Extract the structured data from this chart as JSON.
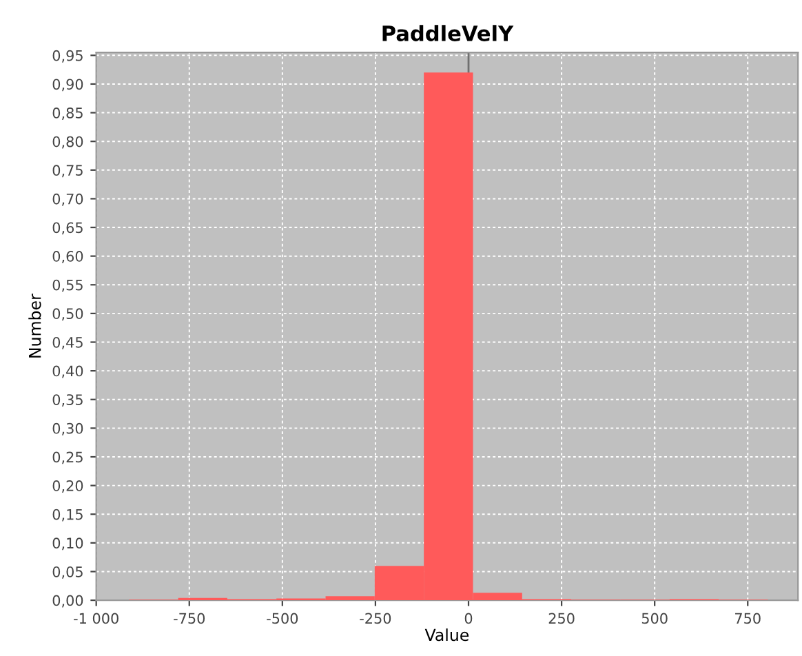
{
  "chart_data": {
    "type": "histogram",
    "title": "PaddleVelY",
    "xlabel": "Value",
    "ylabel": "Number",
    "bins": [
      -912,
      -780,
      -648,
      -516,
      -384,
      -252,
      -120,
      12,
      144,
      276,
      408,
      540,
      672,
      804
    ],
    "values": [
      0.001,
      0.004,
      0.002,
      0.003,
      0.007,
      0.06,
      0.92,
      0.013,
      0.002,
      0.001,
      0.001,
      0.002,
      0.001
    ],
    "color": "#ff5a5a",
    "xlim": [
      -1000,
      885
    ],
    "ylim": [
      0,
      0.955
    ],
    "xticks": [
      {
        "value": -1000,
        "label": "-1 000"
      },
      -750,
      -500,
      -250,
      0,
      250,
      500,
      750
    ],
    "yticks": [
      {
        "value": 0,
        "label": "0,00"
      },
      {
        "value": 0.05,
        "label": "0,05"
      },
      {
        "value": 0.1,
        "label": "0,10"
      },
      {
        "value": 0.15,
        "label": "0,15"
      },
      {
        "value": 0.2,
        "label": "0,20"
      },
      {
        "value": 0.25,
        "label": "0,25"
      },
      {
        "value": 0.3,
        "label": "0,30"
      },
      {
        "value": 0.35,
        "label": "0,35"
      },
      {
        "value": 0.4,
        "label": "0,40"
      },
      {
        "value": 0.45,
        "label": "0,45"
      },
      {
        "value": 0.5,
        "label": "0,50"
      },
      {
        "value": 0.55,
        "label": "0,55"
      },
      {
        "value": 0.6,
        "label": "0,60"
      },
      {
        "value": 0.65,
        "label": "0,65"
      },
      {
        "value": 0.7,
        "label": "0,70"
      },
      {
        "value": 0.75,
        "label": "0,75"
      },
      {
        "value": 0.8,
        "label": "0,80"
      },
      {
        "value": 0.85,
        "label": "0,85"
      },
      {
        "value": 0.9,
        "label": "0,90"
      },
      {
        "value": 0.95,
        "label": "0,95"
      }
    ],
    "ref_lines": [
      {
        "axis": "x",
        "value": 0,
        "color": "#707070"
      }
    ],
    "grid": true
  }
}
